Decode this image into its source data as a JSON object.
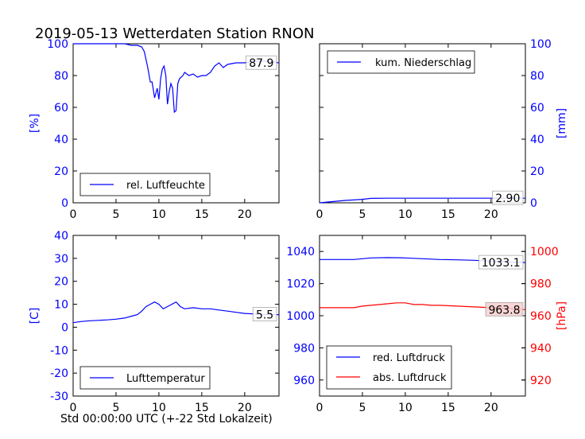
{
  "title": "2019-05-13 Wetterdaten Station RNON",
  "xlabel": "Std 00:00:00 UTC (+-22 Std Lokalzeit)",
  "colors": {
    "blue": "#0000ff",
    "red": "#ff0000",
    "black": "#000000",
    "annot_fill": "#f7cfcf"
  },
  "chart_data": [
    {
      "type": "line",
      "id": "humidity",
      "ylabel": "[%]",
      "ylim": [
        0,
        100
      ],
      "xlim": [
        0,
        24
      ],
      "yticks": [
        0,
        20,
        40,
        60,
        80,
        100
      ],
      "xticks": [
        0,
        5,
        10,
        15,
        20
      ],
      "legend_position": "lower-left",
      "annotation": "87.9",
      "series": [
        {
          "name": "rel. Luftfeuchte",
          "color": "#0000ff",
          "x": [
            0,
            2,
            4,
            6,
            6.8,
            7.5,
            8.0,
            8.3,
            8.7,
            9.0,
            9.2,
            9.5,
            9.8,
            10.0,
            10.2,
            10.4,
            10.6,
            10.8,
            11.0,
            11.2,
            11.4,
            11.6,
            11.8,
            12.0,
            12.2,
            12.4,
            12.6,
            12.8,
            13.0,
            13.5,
            14.0,
            14.5,
            15.0,
            15.5,
            16.0,
            16.5,
            17.0,
            17.5,
            18.0,
            19.0,
            20.0,
            21.0,
            22.0,
            23.0,
            24.0
          ],
          "values": [
            100,
            100,
            100,
            100,
            99,
            99,
            98,
            95,
            85,
            76,
            76,
            66,
            72,
            65,
            78,
            84,
            86,
            80,
            62,
            70,
            75,
            72,
            57,
            58,
            75,
            78,
            79,
            80,
            82,
            80,
            81,
            79,
            80,
            80,
            82,
            86,
            88,
            85,
            87,
            88,
            88,
            89,
            89,
            89,
            87.9
          ]
        }
      ]
    },
    {
      "type": "line",
      "id": "precipitation",
      "ylabel": "[mm]",
      "ylim": [
        0,
        100
      ],
      "xlim": [
        0,
        24
      ],
      "yticks": [
        0,
        20,
        40,
        60,
        80,
        100
      ],
      "xticks": [
        0,
        5,
        10,
        15,
        20
      ],
      "legend_position": "upper-left",
      "annotation": "2.90",
      "series": [
        {
          "name": "kum. Niederschlag",
          "color": "#0000ff",
          "x": [
            0,
            1,
            2,
            3,
            4,
            5,
            6,
            8,
            10,
            14,
            20,
            24
          ],
          "values": [
            0,
            0.5,
            1.0,
            1.5,
            1.8,
            2.2,
            2.8,
            2.9,
            2.9,
            2.9,
            2.9,
            2.9
          ]
        }
      ]
    },
    {
      "type": "line",
      "id": "temperature",
      "ylabel": "[C]",
      "ylim": [
        -30,
        40
      ],
      "xlim": [
        0,
        24
      ],
      "yticks": [
        -30,
        -20,
        -10,
        0,
        10,
        20,
        30,
        40
      ],
      "xticks": [
        0,
        5,
        10,
        15,
        20
      ],
      "legend_position": "lower-left",
      "annotation": "5.5",
      "series": [
        {
          "name": "Lufttemperatur",
          "color": "#0000ff",
          "x": [
            0,
            1,
            2,
            3,
            4,
            5,
            6,
            7,
            7.5,
            8,
            8.5,
            9,
            9.5,
            10,
            10.5,
            11,
            11.5,
            12,
            12.5,
            13,
            14,
            15,
            16,
            17,
            18,
            19,
            20,
            21,
            22,
            23,
            24
          ],
          "values": [
            2,
            2.5,
            2.8,
            3,
            3.2,
            3.5,
            4,
            5,
            5.5,
            7,
            9,
            10,
            11,
            10,
            8,
            9,
            10,
            11,
            9,
            8,
            8.5,
            8,
            8,
            7.5,
            7,
            6.5,
            6,
            5.8,
            5.6,
            5.5,
            5.5
          ]
        }
      ]
    },
    {
      "type": "line",
      "id": "pressure",
      "ylabel": "[hPa]",
      "ylim": [
        950,
        1050
      ],
      "ylim_right": [
        910,
        1010
      ],
      "xlim": [
        0,
        24
      ],
      "yticks": [
        960,
        980,
        1000,
        1020,
        1040
      ],
      "yticks_right": [
        920,
        940,
        960,
        980,
        1000
      ],
      "xticks": [
        0,
        5,
        10,
        15,
        20
      ],
      "legend_position": "lower-left",
      "annotations": [
        "1033.1",
        "963.8"
      ],
      "series": [
        {
          "name": "red. Luftdruck",
          "color": "#0000ff",
          "axis": "left",
          "x": [
            0,
            2,
            4,
            6,
            8,
            10,
            12,
            14,
            16,
            18,
            20,
            22,
            24
          ],
          "values": [
            1035,
            1035,
            1035,
            1036,
            1036.2,
            1036,
            1035.5,
            1035,
            1034.8,
            1034.5,
            1034,
            1033.5,
            1033.1
          ]
        },
        {
          "name": "abs. Luftdruck",
          "color": "#ff0000",
          "axis": "right",
          "x": [
            0,
            2,
            4,
            5,
            6,
            7,
            8,
            9,
            10,
            11,
            12,
            13,
            14,
            16,
            18,
            20,
            22,
            24
          ],
          "values": [
            965,
            965,
            965,
            966,
            966.5,
            967,
            967.5,
            968,
            968,
            967,
            967,
            966.5,
            966.5,
            966,
            965.5,
            965,
            964.5,
            963.8
          ]
        }
      ]
    }
  ]
}
